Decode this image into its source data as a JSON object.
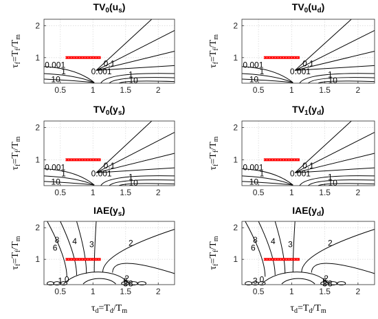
{
  "chart_data": {
    "type": "contour",
    "xlabel": {
      "main": "τ",
      "sub1": "d",
      "mid": "=T",
      "sub2": "d",
      "tail": "/T",
      "sub3": "m"
    },
    "ylabel": {
      "main": "τ",
      "sub1": "f",
      "mid": "=T",
      "sub2": "f",
      "tail": "/T",
      "sub3": "m"
    },
    "xlim": [
      0.25,
      2.25
    ],
    "ylim": [
      0.2,
      2.2
    ],
    "xticks": [
      "0.5",
      "1",
      "1.5",
      "2"
    ],
    "yticks": [
      "1",
      "2"
    ],
    "grid": true,
    "highlight_segment": {
      "x": [
        0.58,
        1.12
      ],
      "y": 1.0,
      "color": "#ff0000"
    },
    "panels": [
      {
        "title": {
          "main": "TV",
          "sub": "0",
          "arg": "u",
          "argsub": "s"
        },
        "contour_labels": [
          {
            "text": "0.001",
            "x": 1.13,
            "y": 0.55
          },
          {
            "text": "0.1",
            "x": 1.25,
            "y": 0.8
          },
          {
            "text": "0.001",
            "x": 0.42,
            "y": 0.75
          },
          {
            "text": "1",
            "x": 0.55,
            "y": 0.55
          },
          {
            "text": "10",
            "x": 0.43,
            "y": 0.3
          },
          {
            "text": "1",
            "x": 1.58,
            "y": 0.45
          },
          {
            "text": "10",
            "x": 1.62,
            "y": 0.27
          }
        ]
      },
      {
        "title": {
          "main": "TV",
          "sub": "0",
          "arg": "u",
          "argsub": "d"
        },
        "contour_labels": [
          {
            "text": "0.001",
            "x": 1.13,
            "y": 0.55
          },
          {
            "text": "0.1",
            "x": 1.25,
            "y": 0.8
          },
          {
            "text": "0.001",
            "x": 0.42,
            "y": 0.75
          },
          {
            "text": "1",
            "x": 0.55,
            "y": 0.55
          },
          {
            "text": "10",
            "x": 0.43,
            "y": 0.3
          },
          {
            "text": "1",
            "x": 1.58,
            "y": 0.45
          },
          {
            "text": "10",
            "x": 1.62,
            "y": 0.27
          }
        ]
      },
      {
        "title": {
          "main": "TV",
          "sub": "0",
          "arg": "y",
          "argsub": "s"
        },
        "contour_labels": [
          {
            "text": "0.001",
            "x": 1.13,
            "y": 0.55
          },
          {
            "text": "0.1",
            "x": 1.25,
            "y": 0.8
          },
          {
            "text": "0.001",
            "x": 0.42,
            "y": 0.75
          },
          {
            "text": "1",
            "x": 0.55,
            "y": 0.55
          },
          {
            "text": "10",
            "x": 0.43,
            "y": 0.3
          },
          {
            "text": "1",
            "x": 1.58,
            "y": 0.45
          },
          {
            "text": "10",
            "x": 1.62,
            "y": 0.27
          }
        ]
      },
      {
        "title": {
          "main": "TV",
          "sub": "1",
          "arg": "y",
          "argsub": "d"
        },
        "contour_labels": [
          {
            "text": "0.001",
            "x": 1.13,
            "y": 0.55
          },
          {
            "text": "0.1",
            "x": 1.25,
            "y": 0.8
          },
          {
            "text": "0.001",
            "x": 0.42,
            "y": 0.75
          },
          {
            "text": "1",
            "x": 0.55,
            "y": 0.55
          },
          {
            "text": "10",
            "x": 0.43,
            "y": 0.3
          },
          {
            "text": "1",
            "x": 1.58,
            "y": 0.45
          },
          {
            "text": "10",
            "x": 1.62,
            "y": 0.27
          }
        ]
      },
      {
        "title": {
          "main": "IAE",
          "sub": "",
          "arg": "y",
          "argsub": "s"
        },
        "contour_labels": [
          {
            "text": "8",
            "x": 0.45,
            "y": 1.6
          },
          {
            "text": "6",
            "x": 0.42,
            "y": 1.35
          },
          {
            "text": "4",
            "x": 0.72,
            "y": 1.55
          },
          {
            "text": "3",
            "x": 0.98,
            "y": 1.45
          },
          {
            "text": "2",
            "x": 1.58,
            "y": 1.5
          },
          {
            "text": "1",
            "x": 0.5,
            "y": 0.3
          },
          {
            "text": "0",
            "x": 0.6,
            "y": 0.35
          },
          {
            "text": "2",
            "x": 1.52,
            "y": 0.38
          },
          {
            "text": "6",
            "x": 1.5,
            "y": 0.3
          },
          {
            "text": "8",
            "x": 1.5,
            "y": 0.22
          },
          {
            "text": "3",
            "x": 1.58,
            "y": 0.22
          }
        ]
      },
      {
        "title": {
          "main": "IAE",
          "sub": "",
          "arg": "y",
          "argsub": "d"
        },
        "contour_labels": [
          {
            "text": "8",
            "x": 0.45,
            "y": 1.6
          },
          {
            "text": "6",
            "x": 0.42,
            "y": 1.35
          },
          {
            "text": "4",
            "x": 0.72,
            "y": 1.55
          },
          {
            "text": "3",
            "x": 0.98,
            "y": 1.45
          },
          {
            "text": "2",
            "x": 1.58,
            "y": 1.5
          },
          {
            "text": "3",
            "x": 0.45,
            "y": 0.3
          },
          {
            "text": "0",
            "x": 0.55,
            "y": 0.35
          },
          {
            "text": "2",
            "x": 1.52,
            "y": 0.38
          },
          {
            "text": "6",
            "x": 1.5,
            "y": 0.3
          },
          {
            "text": "8",
            "x": 1.5,
            "y": 0.22
          },
          {
            "text": "3",
            "x": 1.58,
            "y": 0.22
          }
        ]
      }
    ]
  }
}
